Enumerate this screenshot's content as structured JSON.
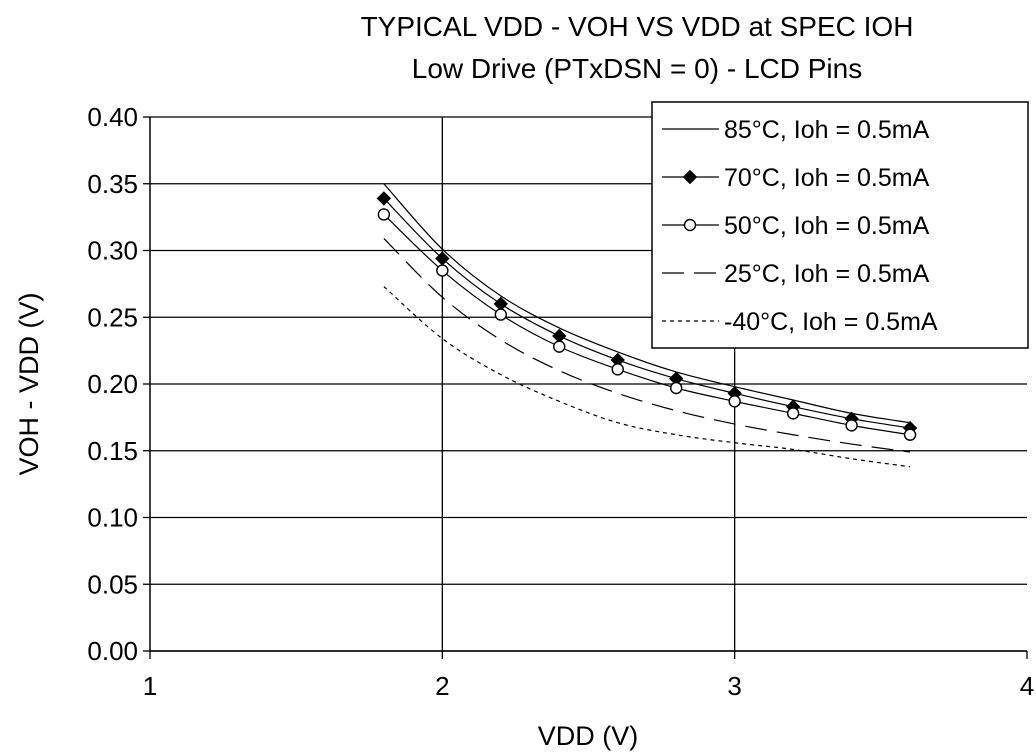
{
  "chart_data": {
    "type": "line",
    "title": "TYPICAL VDD - VOH VS VDD at SPEC IOH",
    "subtitle": "Low Drive (PTxDSN = 0) - LCD Pins",
    "xlabel": "VDD (V)",
    "ylabel": "VOH - VDD (V)",
    "xlim": [
      1,
      4
    ],
    "ylim": [
      0,
      0.4
    ],
    "xticks": [
      "1",
      "2",
      "3",
      "4"
    ],
    "yticks": [
      "0.00",
      "0.05",
      "0.10",
      "0.15",
      "0.20",
      "0.25",
      "0.30",
      "0.35",
      "0.40"
    ],
    "grid": true,
    "legend_position": "top-right",
    "x": [
      1.8,
      2.0,
      2.2,
      2.4,
      2.6,
      2.8,
      3.0,
      3.2,
      3.4,
      3.6
    ],
    "series": [
      {
        "name": "85°C, Ioh = 0.5mA",
        "style": "solid",
        "marker": "none",
        "values": [
          0.35,
          0.301,
          0.266,
          0.242,
          0.224,
          0.209,
          0.198,
          0.188,
          0.178,
          0.171
        ]
      },
      {
        "name": "70°C, Ioh = 0.5mA",
        "style": "solid",
        "marker": "filled-diamond",
        "values": [
          0.339,
          0.294,
          0.26,
          0.236,
          0.218,
          0.204,
          0.193,
          0.183,
          0.174,
          0.167
        ]
      },
      {
        "name": "50°C, Ioh = 0.5mA",
        "style": "solid",
        "marker": "open-circle",
        "values": [
          0.327,
          0.285,
          0.252,
          0.228,
          0.211,
          0.197,
          0.187,
          0.178,
          0.169,
          0.162
        ]
      },
      {
        "name": "25°C, Ioh = 0.5mA",
        "style": "dashed",
        "marker": "none",
        "values": [
          0.309,
          0.265,
          0.233,
          0.21,
          0.193,
          0.18,
          0.17,
          0.162,
          0.155,
          0.149
        ]
      },
      {
        "name": "-40°C, Ioh = 0.5mA",
        "style": "dotted",
        "marker": "none",
        "values": [
          0.273,
          0.234,
          0.207,
          0.187,
          0.171,
          0.162,
          0.156,
          0.151,
          0.144,
          0.138
        ]
      }
    ]
  }
}
